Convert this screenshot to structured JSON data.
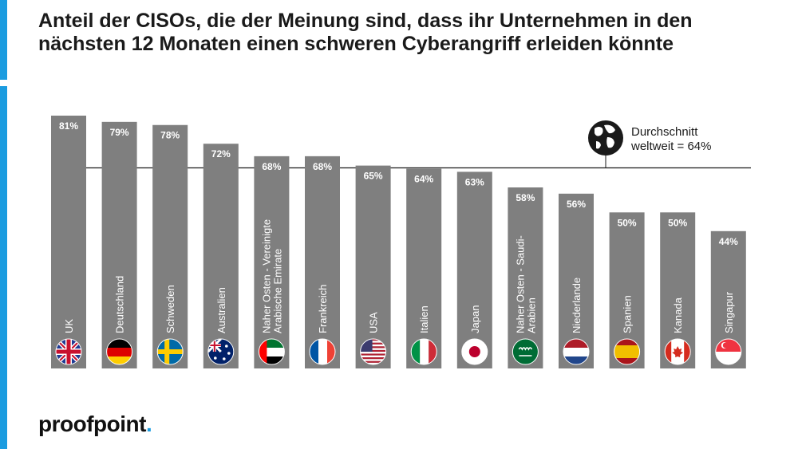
{
  "header": {
    "title": "Anteil der CISOs, die der Meinung sind, dass ihr Unternehmen in den nächsten 12 Monaten einen schweren Cyberangriff erleiden könnte"
  },
  "average": {
    "label_line1": "Durchschnitt",
    "label_line2": "weltweit = 64%",
    "value": 64,
    "icon": "globe-icon"
  },
  "brand": {
    "logo_text": "proofpoint",
    "logo_dot": ".",
    "accent_color": "#1b9ce0"
  },
  "chart_data": {
    "type": "bar",
    "title": "Anteil der CISOs, die der Meinung sind, dass ihr Unternehmen in den nächsten 12 Monaten einen schweren Cyberangriff erleiden könnte",
    "xlabel": "",
    "ylabel": "",
    "ylim": [
      0,
      85
    ],
    "grid": false,
    "reference_line": {
      "value": 64,
      "label": "Durchschnitt weltweit = 64%"
    },
    "bar_color": "#7f7f7f",
    "categories": [
      [
        "UK"
      ],
      [
        "Deutschland"
      ],
      [
        "Schweden"
      ],
      [
        "Australien"
      ],
      [
        "Naher Osten - Vereinigte",
        "Arabische Emirate"
      ],
      [
        "Frankreich"
      ],
      [
        "USA"
      ],
      [
        "Italien"
      ],
      [
        "Japan"
      ],
      [
        "Naher Osten - Saudi-",
        "Arabien"
      ],
      [
        "Niederlande"
      ],
      [
        "Spanien"
      ],
      [
        "Kanada"
      ],
      [
        "Singapur"
      ]
    ],
    "values": [
      81,
      79,
      78,
      72,
      68,
      68,
      65,
      64,
      63,
      58,
      56,
      50,
      50,
      44
    ],
    "value_labels": [
      "81%",
      "79%",
      "78%",
      "72%",
      "68%",
      "68%",
      "65%",
      "64%",
      "63%",
      "58%",
      "56%",
      "50%",
      "50%",
      "44%"
    ],
    "flags": [
      "uk-flag",
      "germany-flag",
      "sweden-flag",
      "australia-flag",
      "uae-flag",
      "france-flag",
      "usa-flag",
      "italy-flag",
      "japan-flag",
      "saudi-arabia-flag",
      "netherlands-flag",
      "spain-flag",
      "canada-flag",
      "singapore-flag"
    ]
  }
}
